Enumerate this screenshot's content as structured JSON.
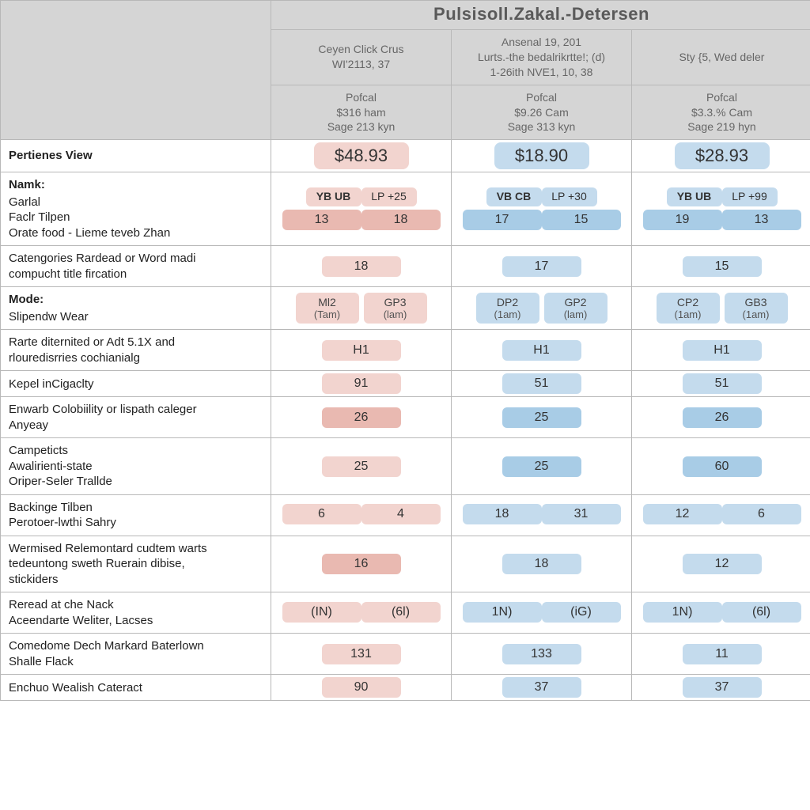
{
  "title": "Pulsisoll.Zakal.-Detersen",
  "colors": {
    "header_gray": "#d5d5d5",
    "border": "#b8b8b8",
    "pink_lt": "#f2d4cf",
    "pink_md": "#e9b9b1",
    "blue_xlt": "#d9e7f2",
    "blue_lt": "#c4dbed",
    "blue_md": "#a8cce6"
  },
  "columns": [
    {
      "h1a": "Ceyen Click Crus",
      "h1b": "WI'2113, 37",
      "h2a": "Pofcal",
      "h2b": "$316 ham",
      "h2c": "Sage 213 kyn"
    },
    {
      "h1a": "Ansenal 19, 201",
      "h1b": "Lurts.-the bedalrikrtte!; (d)",
      "h1c": "1-26ith NVE1, 10, 38",
      "h2a": "Pofcal",
      "h2b": "$9.26 Cam",
      "h2c": "Sage 313 kyn"
    },
    {
      "h1a": "Sty {5, Wed deler",
      "h1b": "",
      "h2a": "Pofcal",
      "h2b": "$3.3.% Cam",
      "h2c": "Sage 219 hyn"
    }
  ],
  "rows": [
    {
      "lab_bold": "Pertienes View",
      "cells": [
        {
          "txt": "$48.93",
          "cls": "price",
          "bg": "pink-lt",
          "shape": "pill"
        },
        {
          "txt": "$18.90",
          "cls": "price",
          "bg": "blue-lt",
          "shape": "pill"
        },
        {
          "txt": "$28.93",
          "cls": "price",
          "bg": "blue-lt",
          "shape": "pill"
        }
      ]
    },
    {
      "lab_bold": "Namk:",
      "lab_sub1": "Garlal",
      "lab_sub2": "Faclr Tilpen",
      "lab_sub3": "Orate food - Lieme teveb Zhan",
      "stack": true,
      "cells": [
        {
          "top": "YB UB",
          "lp": "LP +25",
          "v1": "13",
          "v2": "18",
          "bg_top": "pink-lt",
          "bg_mid": "pink-md"
        },
        {
          "top": "VB CB",
          "lp": "LP +30",
          "v1": "17",
          "v2": "15",
          "bg_top": "blue-lt",
          "bg_mid": "blue-md"
        },
        {
          "top": "YB UB",
          "lp": "LP +99",
          "v1": "19",
          "v2": "13",
          "bg_top": "blue-lt",
          "bg_mid": "blue-md"
        }
      ]
    },
    {
      "lab_sub1": "Catengories Rardead or Word madi",
      "lab_sub2": "compucht title fircation",
      "cells": [
        {
          "txt": "18",
          "cls": "num",
          "bg": "pink-lt",
          "shape": "box"
        },
        {
          "txt": "17",
          "cls": "num",
          "bg": "blue-lt",
          "shape": "box"
        },
        {
          "txt": "15",
          "cls": "num",
          "bg": "blue-lt",
          "shape": "box"
        }
      ]
    },
    {
      "lab_bold": "Mode:",
      "lab_sub1": "Slipendw Wear",
      "mode": true,
      "cells": [
        {
          "l1": "Ml2",
          "l2": "(Tam)",
          "r1": "GP3",
          "r2": "(lam)",
          "bgL": "pink-lt",
          "bgR": "pink-lt"
        },
        {
          "l1": "DP2",
          "l2": "(1am)",
          "r1": "GP2",
          "r2": "(lam)",
          "bgL": "blue-lt",
          "bgR": "blue-lt"
        },
        {
          "l1": "CP2",
          "l2": "(1am)",
          "r1": "GB3",
          "r2": "(1am)",
          "bgL": "blue-lt",
          "bgR": "blue-lt"
        }
      ]
    },
    {
      "lab_sub1": "Rarte diternited or Adt 5.1X and",
      "lab_sub2": "rlouredisrries cochianialg",
      "cells": [
        {
          "txt": "H1",
          "cls": "num",
          "bg": "pink-lt",
          "shape": "box"
        },
        {
          "txt": "H1",
          "cls": "num",
          "bg": "blue-lt",
          "shape": "box"
        },
        {
          "txt": "H1",
          "cls": "num",
          "bg": "blue-lt",
          "shape": "box"
        }
      ]
    },
    {
      "lab_sub1": "Kepel inCigaclty",
      "cells": [
        {
          "txt": "91",
          "cls": "num",
          "bg": "pink-lt",
          "shape": "box"
        },
        {
          "txt": "51",
          "cls": "num",
          "bg": "blue-lt",
          "shape": "box"
        },
        {
          "txt": "51",
          "cls": "num",
          "bg": "blue-lt",
          "shape": "box"
        }
      ]
    },
    {
      "lab_sub1": "Enwarb Colobiility or lispath caleger",
      "lab_sub2": "Anyeay",
      "cells": [
        {
          "txt": "26",
          "cls": "num",
          "bg": "pink-md",
          "shape": "box"
        },
        {
          "txt": "25",
          "cls": "num",
          "bg": "blue-md",
          "shape": "box"
        },
        {
          "txt": "26",
          "cls": "num",
          "bg": "blue-md",
          "shape": "box"
        }
      ]
    },
    {
      "lab_sub1": "Campeticts",
      "lab_sub2": "Awalirienti-state",
      "lab_sub3": "Oriper-Seler Trallde",
      "cells": [
        {
          "txt": "25",
          "cls": "num",
          "bg": "pink-lt",
          "shape": "box"
        },
        {
          "txt": "25",
          "cls": "num",
          "bg": "blue-md",
          "shape": "box"
        },
        {
          "txt": "60",
          "cls": "num",
          "bg": "blue-md",
          "shape": "box"
        }
      ]
    },
    {
      "lab_sub1": "Backinge Tilben",
      "lab_sub2": "Perotoer-lwthi Sahry",
      "two": true,
      "cells": [
        {
          "v1": "6",
          "v2": "4",
          "bg": "pink-lt"
        },
        {
          "v1": "18",
          "v2": "31",
          "bg": "blue-lt"
        },
        {
          "v1": "12",
          "v2": "6",
          "bg": "blue-lt"
        }
      ]
    },
    {
      "lab_sub1": "Wermised Relemontard cudtem warts",
      "lab_sub2": "tedeuntong sweth Ruerain dibise,",
      "lab_sub3": "stickiders",
      "cells": [
        {
          "txt": "16",
          "cls": "num",
          "bg": "pink-md",
          "shape": "box"
        },
        {
          "txt": "18",
          "cls": "num",
          "bg": "blue-lt",
          "shape": "box"
        },
        {
          "txt": "12",
          "cls": "num",
          "bg": "blue-lt",
          "shape": "box"
        }
      ]
    },
    {
      "lab_sub1": "Reread at che Nack",
      "lab_sub2": "Aceendarte Weliter, Lacses",
      "two": true,
      "cells": [
        {
          "v1": "(IN)",
          "v2": "(6l)",
          "bg": "pink-lt"
        },
        {
          "v1": "1N)",
          "v2": "(iG)",
          "bg": "blue-lt"
        },
        {
          "v1": "1N)",
          "v2": "(6l)",
          "bg": "blue-lt"
        }
      ]
    },
    {
      "lab_sub1": "Comedome Dech Markard Baterlown",
      "lab_sub2": "Shalle Flack",
      "cells": [
        {
          "txt": "131",
          "cls": "num",
          "bg": "pink-lt",
          "shape": "box"
        },
        {
          "txt": "133",
          "cls": "num",
          "bg": "blue-lt",
          "shape": "box"
        },
        {
          "txt": "11",
          "cls": "num",
          "bg": "blue-lt",
          "shape": "box"
        }
      ]
    },
    {
      "lab_sub1": "Enchuo Wealish Cateract",
      "cells": [
        {
          "txt": "90",
          "cls": "num",
          "bg": "pink-lt",
          "shape": "box"
        },
        {
          "txt": "37",
          "cls": "num",
          "bg": "blue-lt",
          "shape": "box"
        },
        {
          "txt": "37",
          "cls": "num",
          "bg": "blue-lt",
          "shape": "box"
        }
      ]
    }
  ]
}
